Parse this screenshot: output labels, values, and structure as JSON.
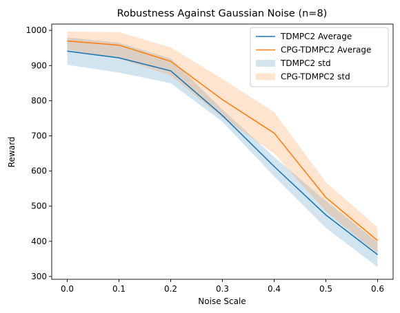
{
  "chart_data": {
    "type": "line",
    "title": "Robustness Against Gaussian Noise (n=8)",
    "xlabel": "Noise Scale",
    "ylabel": "Reward",
    "x": [
      0.0,
      0.1,
      0.2,
      0.3,
      0.4,
      0.5,
      0.6
    ],
    "x_ticks": [
      "0.0",
      "0.1",
      "0.2",
      "0.3",
      "0.4",
      "0.5",
      "0.6"
    ],
    "y_ticks": [
      300,
      400,
      500,
      600,
      700,
      800,
      900,
      1000
    ],
    "xlim": [
      -0.03,
      0.63
    ],
    "ylim": [
      292,
      1018
    ],
    "grid": false,
    "legend_position": "top-right",
    "series": [
      {
        "name": "TDMPC2 Average",
        "std_name": "TDMPC2 std",
        "color": "#1f77b4",
        "values": [
          941,
          922,
          885,
          758,
          613,
          475,
          362
        ],
        "lower": [
          902,
          880,
          850,
          740,
          585,
          438,
          327
        ],
        "upper": [
          980,
          965,
          920,
          775,
          640,
          515,
          398
        ]
      },
      {
        "name": "CPG-TDMPC2 Average",
        "std_name": "CPG-TDMPC2 std",
        "color": "#ff7f0e",
        "values": [
          970,
          958,
          912,
          803,
          708,
          525,
          402
        ],
        "lower": [
          945,
          920,
          872,
          752,
          650,
          485,
          365
        ],
        "upper": [
          997,
          995,
          952,
          862,
          768,
          568,
          440
        ]
      }
    ]
  }
}
